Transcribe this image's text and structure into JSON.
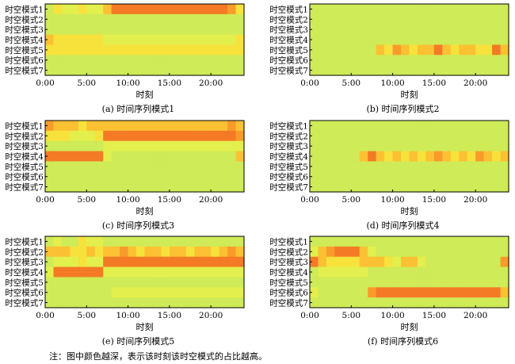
{
  "figure": {
    "footnote": "注：图中颜色越深，表示该时刻该时空模式的占比越高。"
  },
  "chart_data": [
    {
      "type": "heatmap",
      "caption": "(a) 时间序列模式1",
      "xlabel": "时刻",
      "x_ticks": [
        "0:00",
        "5:00",
        "10:00",
        "15:00",
        "20:00"
      ],
      "xlim": [
        0,
        24
      ],
      "rows": [
        "时空模式1",
        "时空模式2",
        "时空模式3",
        "时空模式4",
        "时空模式5",
        "时空模式6",
        "时空模式7"
      ],
      "hours": 24,
      "color_scale": [
        "#cfeb57",
        "#e3ef4c",
        "#f7e23c",
        "#fbc133",
        "#f99b2b",
        "#f47a25",
        "#ee5a1e"
      ],
      "values": [
        [
          0,
          2,
          1,
          1,
          2,
          1,
          1,
          3,
          5,
          5,
          5,
          5,
          5,
          5,
          5,
          5,
          5,
          5,
          5,
          5,
          5,
          5,
          4,
          2
        ],
        [
          0,
          0,
          0,
          0,
          0,
          0,
          0,
          0,
          0,
          0,
          0,
          0,
          0,
          0,
          0,
          0,
          0,
          0,
          0,
          0,
          0,
          0,
          0,
          0
        ],
        [
          0,
          0,
          0,
          0,
          0,
          0,
          0,
          0,
          0,
          0,
          0,
          0,
          0,
          0,
          0,
          0,
          0,
          0,
          0,
          0,
          0,
          0,
          0,
          0
        ],
        [
          3,
          2,
          2,
          2,
          2,
          2,
          2,
          1,
          1,
          1,
          1,
          1,
          1,
          1,
          1,
          1,
          1,
          1,
          1,
          1,
          1,
          1,
          1,
          2
        ],
        [
          2,
          2,
          2,
          2,
          2,
          2,
          2,
          2,
          2,
          2,
          2,
          2,
          2,
          2,
          2,
          2,
          2,
          2,
          2,
          2,
          2,
          2,
          2,
          2
        ],
        [
          0,
          0,
          0,
          0,
          0,
          0,
          0,
          0,
          0,
          0,
          0,
          0,
          0,
          0,
          0,
          0,
          0,
          0,
          0,
          0,
          0,
          0,
          0,
          0
        ],
        [
          0,
          0,
          0,
          0,
          0,
          0,
          0,
          0,
          0,
          0,
          0,
          0,
          0,
          0,
          0,
          0,
          0,
          0,
          0,
          0,
          0,
          0,
          0,
          0
        ]
      ]
    },
    {
      "type": "heatmap",
      "caption": "(b) 时间序列模式2",
      "xlabel": "时刻",
      "x_ticks": [
        "0:00",
        "5:00",
        "10:00",
        "15:00",
        "20:00"
      ],
      "xlim": [
        0,
        24
      ],
      "rows": [
        "时空模式1",
        "时空模式2",
        "时空模式3",
        "时空模式4",
        "时空模式5",
        "时空模式6",
        "时空模式7"
      ],
      "hours": 24,
      "color_scale": [
        "#cfeb57",
        "#e3ef4c",
        "#f7e23c",
        "#fbc133",
        "#f99b2b",
        "#f47a25",
        "#ee5a1e"
      ],
      "values": [
        [
          0,
          0,
          0,
          0,
          0,
          0,
          0,
          0,
          0,
          0,
          0,
          0,
          0,
          0,
          0,
          0,
          0,
          0,
          0,
          0,
          0,
          0,
          0,
          0
        ],
        [
          0,
          0,
          0,
          0,
          0,
          0,
          0,
          0,
          0,
          0,
          0,
          0,
          0,
          0,
          0,
          0,
          0,
          0,
          0,
          0,
          0,
          0,
          0,
          0
        ],
        [
          0,
          0,
          0,
          0,
          0,
          0,
          0,
          0,
          0,
          0,
          0,
          0,
          0,
          0,
          0,
          0,
          0,
          0,
          0,
          0,
          0,
          0,
          0,
          0
        ],
        [
          0,
          0,
          0,
          0,
          0,
          0,
          0,
          0,
          0,
          0,
          0,
          0,
          0,
          0,
          0,
          0,
          0,
          0,
          0,
          0,
          0,
          0,
          0,
          0
        ],
        [
          0,
          0,
          0,
          0,
          0,
          0,
          0,
          0,
          3,
          2,
          4,
          3,
          2,
          3,
          3,
          5,
          3,
          2,
          3,
          3,
          2,
          2,
          5,
          3
        ],
        [
          0,
          0,
          0,
          0,
          0,
          0,
          0,
          0,
          0,
          0,
          0,
          0,
          0,
          0,
          0,
          0,
          0,
          0,
          0,
          0,
          0,
          0,
          0,
          0
        ],
        [
          0,
          0,
          0,
          0,
          0,
          0,
          0,
          0,
          0,
          0,
          0,
          0,
          0,
          0,
          0,
          0,
          0,
          0,
          0,
          0,
          0,
          0,
          0,
          0
        ]
      ]
    },
    {
      "type": "heatmap",
      "caption": "(c) 时间序列模式3",
      "xlabel": "时刻",
      "x_ticks": [
        "0:00",
        "5:00",
        "10:00",
        "15:00",
        "20:00"
      ],
      "xlim": [
        0,
        24
      ],
      "rows": [
        "时空模式1",
        "时空模式2",
        "时空模式3",
        "时空模式4",
        "时空模式5",
        "时空模式6",
        "时空模式7"
      ],
      "hours": 24,
      "color_scale": [
        "#cfeb57",
        "#e3ef4c",
        "#f7e23c",
        "#fbc133",
        "#f99b2b",
        "#f47a25",
        "#ee5a1e"
      ],
      "values": [
        [
          4,
          3,
          3,
          3,
          2,
          3,
          3,
          3,
          3,
          3,
          3,
          3,
          3,
          3,
          3,
          3,
          3,
          3,
          3,
          3,
          3,
          3,
          4,
          3
        ],
        [
          2,
          2,
          2,
          1,
          1,
          1,
          2,
          5,
          5,
          5,
          5,
          5,
          5,
          5,
          5,
          5,
          5,
          5,
          5,
          5,
          5,
          5,
          5,
          4
        ],
        [
          0,
          0,
          0,
          0,
          0,
          0,
          0,
          1,
          1,
          1,
          1,
          1,
          1,
          1,
          1,
          1,
          1,
          1,
          1,
          1,
          1,
          1,
          1,
          1
        ],
        [
          5,
          5,
          5,
          5,
          5,
          5,
          5,
          1,
          0,
          0,
          0,
          0,
          0,
          0,
          0,
          0,
          0,
          0,
          0,
          0,
          0,
          0,
          0,
          3
        ],
        [
          0,
          0,
          0,
          0,
          0,
          0,
          0,
          0,
          0,
          0,
          0,
          0,
          0,
          0,
          0,
          0,
          0,
          0,
          0,
          0,
          0,
          0,
          0,
          0
        ],
        [
          0,
          0,
          0,
          0,
          0,
          0,
          0,
          0,
          0,
          0,
          0,
          0,
          0,
          0,
          0,
          0,
          0,
          0,
          0,
          0,
          0,
          0,
          0,
          0
        ],
        [
          0,
          0,
          0,
          0,
          0,
          0,
          0,
          0,
          0,
          0,
          0,
          0,
          0,
          0,
          0,
          0,
          0,
          0,
          0,
          0,
          0,
          0,
          0,
          0
        ]
      ]
    },
    {
      "type": "heatmap",
      "caption": "(d) 时间序列模式4",
      "xlabel": "时刻",
      "x_ticks": [
        "0:00",
        "5:00",
        "10:00",
        "15:00",
        "20:00"
      ],
      "xlim": [
        0,
        24
      ],
      "rows": [
        "时空模式1",
        "时空模式2",
        "时空模式3",
        "时空模式4",
        "时空模式5",
        "时空模式6",
        "时空模式7"
      ],
      "hours": 24,
      "color_scale": [
        "#cfeb57",
        "#e3ef4c",
        "#f7e23c",
        "#fbc133",
        "#f99b2b",
        "#f47a25",
        "#ee5a1e"
      ],
      "values": [
        [
          0,
          0,
          0,
          0,
          0,
          0,
          0,
          0,
          0,
          0,
          0,
          0,
          0,
          0,
          0,
          0,
          0,
          0,
          0,
          0,
          0,
          0,
          0,
          0
        ],
        [
          0,
          0,
          0,
          0,
          0,
          0,
          0,
          0,
          0,
          0,
          0,
          0,
          0,
          0,
          0,
          0,
          0,
          0,
          0,
          0,
          0,
          0,
          0,
          0
        ],
        [
          0,
          0,
          0,
          0,
          0,
          0,
          0,
          0,
          0,
          0,
          0,
          0,
          0,
          0,
          0,
          0,
          0,
          0,
          0,
          0,
          0,
          0,
          0,
          0
        ],
        [
          0,
          0,
          0,
          0,
          0,
          0,
          3,
          5,
          3,
          2,
          3,
          2,
          3,
          2,
          3,
          4,
          3,
          2,
          3,
          2,
          4,
          3,
          2,
          3
        ],
        [
          0,
          0,
          0,
          0,
          0,
          0,
          0,
          0,
          0,
          0,
          0,
          0,
          0,
          0,
          0,
          0,
          0,
          0,
          0,
          0,
          0,
          0,
          0,
          0
        ],
        [
          0,
          0,
          0,
          0,
          0,
          0,
          0,
          0,
          0,
          0,
          0,
          0,
          0,
          0,
          0,
          0,
          0,
          0,
          0,
          0,
          0,
          0,
          0,
          0
        ],
        [
          0,
          0,
          0,
          0,
          0,
          0,
          0,
          0,
          0,
          0,
          0,
          0,
          0,
          0,
          0,
          0,
          0,
          0,
          0,
          0,
          0,
          0,
          0,
          0
        ]
      ]
    },
    {
      "type": "heatmap",
      "caption": "(e) 时间序列模式5",
      "xlabel": "时刻",
      "x_ticks": [
        "0:00",
        "5:00",
        "10:00",
        "15:00",
        "20:00"
      ],
      "xlim": [
        0,
        24
      ],
      "rows": [
        "时空模式1",
        "时空模式2",
        "时空模式3",
        "时空模式4",
        "时空模式5",
        "时空模式6",
        "时空模式7"
      ],
      "hours": 24,
      "color_scale": [
        "#cfeb57",
        "#e3ef4c",
        "#f7e23c",
        "#fbc133",
        "#f99b2b",
        "#f47a25",
        "#ee5a1e"
      ],
      "values": [
        [
          0,
          1,
          0,
          0,
          2,
          1,
          1,
          0,
          0,
          0,
          0,
          0,
          0,
          0,
          0,
          0,
          0,
          0,
          0,
          0,
          0,
          0,
          0,
          0
        ],
        [
          3,
          3,
          3,
          2,
          2,
          3,
          2,
          3,
          3,
          4,
          3,
          2,
          3,
          3,
          2,
          3,
          3,
          2,
          3,
          3,
          2,
          3,
          4,
          3
        ],
        [
          0,
          1,
          1,
          1,
          2,
          1,
          1,
          5,
          5,
          5,
          5,
          5,
          5,
          5,
          5,
          5,
          5,
          5,
          5,
          5,
          5,
          5,
          5,
          5
        ],
        [
          1,
          5,
          5,
          5,
          5,
          5,
          5,
          1,
          1,
          1,
          1,
          1,
          1,
          1,
          1,
          1,
          1,
          1,
          1,
          1,
          1,
          1,
          1,
          1
        ],
        [
          0,
          0,
          0,
          0,
          0,
          0,
          0,
          0,
          0,
          0,
          0,
          0,
          0,
          0,
          0,
          0,
          0,
          0,
          0,
          0,
          0,
          0,
          0,
          0
        ],
        [
          0,
          0,
          0,
          0,
          0,
          0,
          0,
          0,
          1,
          1,
          1,
          1,
          1,
          1,
          1,
          1,
          1,
          1,
          1,
          1,
          1,
          1,
          1,
          1
        ],
        [
          0,
          0,
          0,
          0,
          0,
          0,
          0,
          0,
          0,
          0,
          0,
          0,
          0,
          0,
          0,
          0,
          0,
          0,
          0,
          0,
          0,
          0,
          0,
          0
        ]
      ]
    },
    {
      "type": "heatmap",
      "caption": "(f) 时间序列模式6",
      "xlabel": "时刻",
      "x_ticks": [
        "0:00",
        "5:00",
        "10:00",
        "15:00",
        "20:00"
      ],
      "xlim": [
        0,
        24
      ],
      "rows": [
        "时空模式1",
        "时空模式2",
        "时空模式3",
        "时空模式4",
        "时空模式5",
        "时空模式6",
        "时空模式7"
      ],
      "hours": 24,
      "color_scale": [
        "#cfeb57",
        "#e3ef4c",
        "#f7e23c",
        "#fbc133",
        "#f99b2b",
        "#f47a25",
        "#ee5a1e"
      ],
      "values": [
        [
          0,
          0,
          0,
          0,
          0,
          0,
          0,
          0,
          0,
          0,
          0,
          0,
          0,
          0,
          0,
          0,
          0,
          0,
          0,
          0,
          0,
          0,
          0,
          0
        ],
        [
          1,
          3,
          4,
          5,
          5,
          5,
          3,
          1,
          0,
          0,
          0,
          0,
          0,
          0,
          0,
          0,
          0,
          0,
          0,
          0,
          0,
          0,
          0,
          0
        ],
        [
          5,
          3,
          2,
          2,
          2,
          2,
          3,
          3,
          3,
          2,
          1,
          3,
          3,
          1,
          0,
          0,
          0,
          0,
          0,
          0,
          0,
          0,
          0,
          4
        ],
        [
          0,
          1,
          1,
          1,
          1,
          1,
          1,
          0,
          0,
          0,
          0,
          0,
          0,
          0,
          0,
          0,
          0,
          0,
          0,
          0,
          0,
          0,
          0,
          0
        ],
        [
          0,
          0,
          0,
          0,
          0,
          0,
          0,
          0,
          0,
          0,
          0,
          0,
          0,
          0,
          0,
          0,
          0,
          0,
          0,
          0,
          0,
          0,
          0,
          0
        ],
        [
          1,
          0,
          0,
          0,
          0,
          0,
          0,
          4,
          5,
          5,
          5,
          5,
          5,
          5,
          5,
          5,
          5,
          5,
          5,
          5,
          5,
          5,
          5,
          3
        ],
        [
          0,
          0,
          0,
          0,
          0,
          0,
          0,
          0,
          0,
          0,
          0,
          0,
          0,
          0,
          0,
          0,
          0,
          0,
          0,
          0,
          0,
          0,
          0,
          0
        ]
      ]
    }
  ]
}
